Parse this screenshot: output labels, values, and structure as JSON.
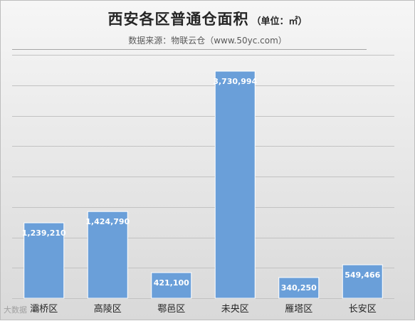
{
  "header": {
    "title": "西安各区普通仓面积",
    "title_unit": "（单位：㎡）",
    "subtitle": "数据来源：物联云仓（www.50yc.com）"
  },
  "watermark": "大数据",
  "chart_data": {
    "type": "bar",
    "title": "西安各区普通仓面积",
    "categories": [
      "灞桥区",
      "高陵区",
      "鄠邑区",
      "未央区",
      "雁塔区",
      "长安区"
    ],
    "values": [
      1239210,
      1424790,
      421100,
      3730994,
      340250,
      549466
    ],
    "value_labels": [
      "1,239,210",
      "1,424,790",
      "421,100",
      "3,730,994",
      "340,250",
      "549,466"
    ],
    "ylim": [
      0,
      4000000
    ],
    "grid": true,
    "bar_color": "#6a9fd9"
  }
}
